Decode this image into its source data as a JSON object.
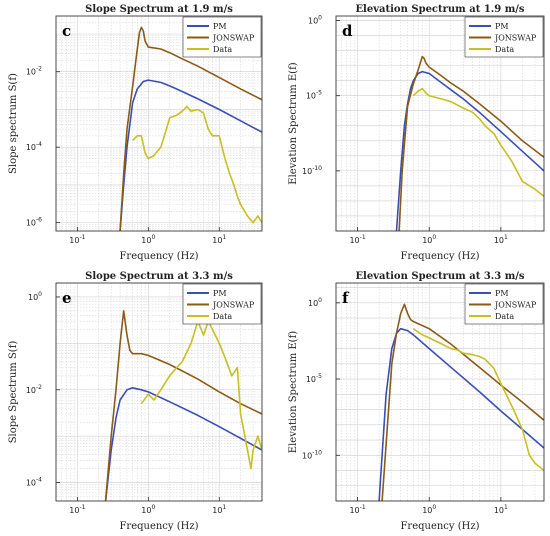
{
  "colors": {
    "PM": "#3a4fb4",
    "JONSWAP": "#8c5a17",
    "Data": "#c9bf22"
  },
  "chart_data": [
    {
      "type": "line",
      "letter": "c",
      "title": "Slope Spectrum at 1.9 m/s",
      "xlabel": "Frequency (Hz)",
      "ylabel": "Slope spectrum S(f)",
      "xscale": "log",
      "yscale": "log",
      "xlim": [
        0.05,
        40
      ],
      "ylim": [
        6e-07,
        0.3
      ],
      "xticks": [
        {
          "v": 0.1,
          "b": "10",
          "e": "-1"
        },
        {
          "v": 1,
          "b": "10",
          "e": "0"
        },
        {
          "v": 10,
          "b": "10",
          "e": "1"
        }
      ],
      "yticks": [
        {
          "v": 1e-06,
          "b": "10",
          "e": "-6"
        },
        {
          "v": 0.0001,
          "b": "10",
          "e": "-4"
        },
        {
          "v": 0.01,
          "b": "10",
          "e": "-2"
        }
      ],
      "legend": "top-right",
      "series": [
        {
          "name": "PM",
          "color": "#3a4fb4",
          "x": [
            0.4,
            0.45,
            0.5,
            0.6,
            0.7,
            0.85,
            1,
            1.5,
            2,
            3,
            5,
            10,
            20,
            40
          ],
          "y": [
            6e-07,
            1e-05,
            0.0001,
            0.0015,
            0.0035,
            0.0055,
            0.006,
            0.0052,
            0.0042,
            0.003,
            0.0019,
            0.001,
            0.0005,
            0.00025
          ]
        },
        {
          "name": "JONSWAP",
          "color": "#8c5a17",
          "x": [
            0.4,
            0.45,
            0.5,
            0.6,
            0.7,
            0.75,
            0.8,
            0.85,
            0.9,
            1,
            1.5,
            2,
            3,
            5,
            10,
            20,
            40
          ],
          "y": [
            6e-07,
            2e-05,
            0.0003,
            0.004,
            0.04,
            0.11,
            0.15,
            0.12,
            0.065,
            0.045,
            0.04,
            0.032,
            0.022,
            0.014,
            0.007,
            0.0035,
            0.0018
          ]
        },
        {
          "name": "Data",
          "color": "#c9bf22",
          "x": [
            0.6,
            0.7,
            0.8,
            0.9,
            1,
            1.2,
            1.5,
            1.8,
            2,
            2.5,
            3,
            3.5,
            4,
            5,
            6,
            7,
            8,
            10,
            12,
            14,
            16,
            18,
            20,
            25,
            30,
            35,
            40
          ],
          "y": [
            0.00015,
            0.0002,
            0.0002,
            7e-05,
            5e-05,
            6e-05,
            0.0001,
            0.0003,
            0.0006,
            0.0007,
            0.0009,
            0.0012,
            0.0009,
            0.001,
            0.0008,
            0.0003,
            0.0002,
            0.0002,
            5e-05,
            2e-05,
            1e-05,
            5e-06,
            3e-06,
            1.5e-06,
            1e-06,
            1.5e-06,
            1e-06
          ]
        }
      ]
    },
    {
      "type": "line",
      "letter": "d",
      "title": "Elevation Spectrum at 1.9 m/s",
      "xlabel": "Frequency (Hz)",
      "ylabel": "Elevation Spectrum E(f)",
      "xscale": "log",
      "yscale": "log",
      "xlim": [
        0.05,
        40
      ],
      "ylim": [
        1e-14,
        2
      ],
      "xticks": [
        {
          "v": 0.1,
          "b": "10",
          "e": "-1"
        },
        {
          "v": 1,
          "b": "10",
          "e": "0"
        },
        {
          "v": 10,
          "b": "10",
          "e": "1"
        }
      ],
      "yticks": [
        {
          "v": 1e-10,
          "b": "10",
          "e": "-10"
        },
        {
          "v": 1e-05,
          "b": "10",
          "e": "-5"
        },
        {
          "v": 1,
          "b": "10",
          "e": "0"
        }
      ],
      "legend": "top-right",
      "series": [
        {
          "name": "PM",
          "color": "#3a4fb4",
          "x": [
            0.35,
            0.4,
            0.45,
            0.5,
            0.55,
            0.6,
            0.7,
            0.8,
            1,
            1.5,
            2,
            3,
            5,
            10,
            20,
            40
          ],
          "y": [
            1e-14,
            1e-10,
            1e-07,
            3e-06,
            3e-05,
            0.0001,
            0.0003,
            0.0004,
            0.0003,
            7e-05,
            2.5e-05,
            6e-06,
            8e-07,
            4e-08,
            2e-09,
            1e-10
          ]
        },
        {
          "name": "JONSWAP",
          "color": "#8c5a17",
          "x": [
            0.38,
            0.42,
            0.5,
            0.6,
            0.7,
            0.75,
            0.8,
            0.85,
            0.9,
            1,
            1.5,
            2,
            3,
            5,
            10,
            20,
            40
          ],
          "y": [
            1e-14,
            1e-10,
            2e-06,
            6e-05,
            0.0005,
            0.0015,
            0.004,
            0.003,
            0.0015,
            0.0008,
            0.0002,
            7e-05,
            2e-05,
            3e-06,
            2e-07,
            1e-08,
            8e-10
          ]
        },
        {
          "name": "Data",
          "color": "#c9bf22",
          "x": [
            0.6,
            0.7,
            0.8,
            0.9,
            1,
            1.5,
            2,
            3,
            4,
            5,
            6,
            8,
            10,
            14,
            20,
            30,
            40
          ],
          "y": [
            1e-05,
            2e-05,
            3e-05,
            1.5e-05,
            1e-05,
            6e-06,
            4e-06,
            1.5e-06,
            8e-07,
            3e-07,
            1e-07,
            3e-08,
            5e-09,
            5e-10,
            2e-11,
            6e-12,
            2e-12
          ]
        }
      ]
    },
    {
      "type": "line",
      "letter": "e",
      "title": "Slope Spectrum at 3.3 m/s",
      "xlabel": "Frequency (Hz)",
      "ylabel": "Slope Spectrum S(f)",
      "xscale": "log",
      "yscale": "log",
      "xlim": [
        0.05,
        40
      ],
      "ylim": [
        4e-05,
        2
      ],
      "xticks": [
        {
          "v": 0.1,
          "b": "10",
          "e": "-1"
        },
        {
          "v": 1,
          "b": "10",
          "e": "0"
        },
        {
          "v": 10,
          "b": "10",
          "e": "1"
        }
      ],
      "yticks": [
        {
          "v": 0.0001,
          "b": "10",
          "e": "-4"
        },
        {
          "v": 0.01,
          "b": "10",
          "e": "-2"
        },
        {
          "v": 1,
          "b": "10",
          "e": "0"
        }
      ],
      "legend": "top-right",
      "series": [
        {
          "name": "PM",
          "color": "#3a4fb4",
          "x": [
            0.25,
            0.3,
            0.35,
            0.4,
            0.5,
            0.6,
            0.8,
            1,
            2,
            5,
            10,
            20,
            40
          ],
          "y": [
            4e-05,
            0.0005,
            0.0025,
            0.006,
            0.01,
            0.011,
            0.01,
            0.009,
            0.0055,
            0.0028,
            0.0016,
            0.0009,
            0.0005
          ]
        },
        {
          "name": "JONSWAP",
          "color": "#8c5a17",
          "x": [
            0.25,
            0.3,
            0.35,
            0.4,
            0.45,
            0.5,
            0.55,
            0.6,
            0.8,
            1,
            2,
            5,
            10,
            20,
            40
          ],
          "y": [
            4e-05,
            0.001,
            0.01,
            0.1,
            0.5,
            0.15,
            0.07,
            0.06,
            0.06,
            0.055,
            0.035,
            0.017,
            0.009,
            0.005,
            0.003
          ]
        },
        {
          "name": "Data",
          "color": "#c9bf22",
          "x": [
            0.8,
            1,
            1.2,
            1.5,
            2,
            2.5,
            3,
            4,
            5,
            6,
            7,
            8,
            10,
            12,
            15,
            18,
            20,
            25,
            28,
            30,
            35,
            40
          ],
          "y": [
            0.005,
            0.008,
            0.006,
            0.01,
            0.02,
            0.03,
            0.04,
            0.1,
            0.3,
            0.15,
            0.3,
            0.2,
            0.1,
            0.05,
            0.02,
            0.03,
            0.003,
            0.0005,
            0.0002,
            0.0005,
            0.001,
            0.0005
          ]
        }
      ]
    },
    {
      "type": "line",
      "letter": "f",
      "title": "Elevation Spectrum at 3.3 m/s",
      "xlabel": "Frequency (Hz)",
      "ylabel": "Elevation Spectrum E(f)",
      "xscale": "log",
      "yscale": "log",
      "xlim": [
        0.05,
        40
      ],
      "ylim": [
        1e-13,
        20
      ],
      "xticks": [
        {
          "v": 0.1,
          "b": "10",
          "e": "-1"
        },
        {
          "v": 1,
          "b": "10",
          "e": "0"
        },
        {
          "v": 10,
          "b": "10",
          "e": "1"
        }
      ],
      "yticks": [
        {
          "v": 1e-10,
          "b": "10",
          "e": "-10"
        },
        {
          "v": 1e-05,
          "b": "10",
          "e": "-5"
        },
        {
          "v": 1,
          "b": "10",
          "e": "0"
        }
      ],
      "legend": "top-right",
      "series": [
        {
          "name": "PM",
          "color": "#3a4fb4",
          "x": [
            0.2,
            0.25,
            0.3,
            0.35,
            0.4,
            0.5,
            0.6,
            1,
            2,
            5,
            10,
            20,
            40
          ],
          "y": [
            1e-13,
            1e-06,
            0.001,
            0.01,
            0.02,
            0.015,
            0.008,
            0.001,
            6e-05,
            1.5e-06,
            8e-08,
            5e-09,
            3e-10
          ]
        },
        {
          "name": "JONSWAP",
          "color": "#8c5a17",
          "x": [
            0.22,
            0.3,
            0.35,
            0.4,
            0.45,
            0.5,
            0.55,
            0.6,
            1,
            2,
            5,
            10,
            20,
            40
          ],
          "y": [
            1e-13,
            0.0001,
            0.01,
            0.2,
            0.8,
            0.2,
            0.08,
            0.06,
            0.02,
            0.002,
            6e-05,
            4e-06,
            3e-07,
            2e-08
          ]
        },
        {
          "name": "Data",
          "color": "#c9bf22",
          "x": [
            0.6,
            0.8,
            1,
            1.5,
            2,
            2.5,
            3,
            4,
            5,
            6,
            8,
            10,
            15,
            20,
            25,
            30,
            40
          ],
          "y": [
            0.02,
            0.008,
            0.005,
            0.002,
            0.001,
            0.0008,
            0.0005,
            0.0004,
            0.0003,
            0.0002,
            5e-05,
            5e-06,
            1e-07,
            5e-09,
            1e-10,
            3e-11,
            1e-11
          ]
        }
      ]
    }
  ]
}
